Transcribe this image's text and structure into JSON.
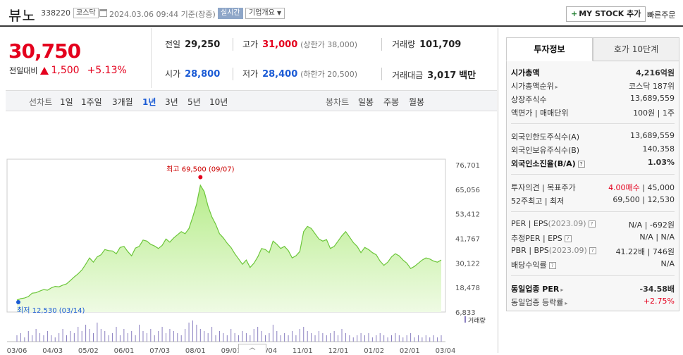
{
  "header": {
    "name": "뷰노",
    "code": "338220",
    "market": "코스닥",
    "datetime": "2024.03.06 09:44 기준(장중)",
    "realtime": "실시간",
    "company_info": "기업개요",
    "mystock": "MY STOCK 추가",
    "quick_order": "빠른주문"
  },
  "price": {
    "current": "30,750",
    "change_label": "전일대비",
    "change_amount": "1,500",
    "change_pct": "+5.13%"
  },
  "stats": {
    "prev_label": "전일",
    "prev": "29,250",
    "high_label": "고가",
    "high": "31,000",
    "upper_limit": "(상한가 38,000)",
    "volume_label": "거래량",
    "volume": "101,709",
    "open_label": "시가",
    "open": "28,800",
    "low_label": "저가",
    "low": "28,400",
    "lower_limit": "(하한가 20,500)",
    "amount_label": "거래대금",
    "amount": "3,017",
    "amount_unit": "백만"
  },
  "period_bar": {
    "line_label": "선차트",
    "line_tabs": [
      "1일",
      "1주일",
      "3개월",
      "1년",
      "3년",
      "5년",
      "10년"
    ],
    "active": "1년",
    "candle_label": "봉차트",
    "candle_tabs": [
      "일봉",
      "주봉",
      "월봉"
    ]
  },
  "chart_data": {
    "type": "area",
    "y_ticks": [
      "76,701",
      "65,056",
      "53,412",
      "41,767",
      "30,122",
      "18,478",
      "6,833"
    ],
    "x_ticks": [
      "03/06",
      "04/03",
      "05/02",
      "06/01",
      "07/03",
      "08/01",
      "09/01",
      "10/04",
      "11/01",
      "12/01",
      "01/02",
      "02/01",
      "03/04"
    ],
    "max_label": "최고 69,500 (09/07)",
    "min_label": "최저 12,530 (03/14)",
    "volume_label": "거래량",
    "ylim": [
      6833,
      76701
    ],
    "values": [
      12530,
      13200,
      13500,
      14200,
      15800,
      16000,
      16800,
      17500,
      17200,
      18300,
      19000,
      18800,
      19600,
      20200,
      21800,
      23500,
      25000,
      26800,
      29500,
      32500,
      30500,
      33000,
      34000,
      36500,
      36000,
      35800,
      34500,
      37500,
      38000,
      35500,
      33500,
      37200,
      38000,
      41000,
      40500,
      39000,
      38200,
      37000,
      38500,
      41500,
      40000,
      42000,
      43500,
      45000,
      44000,
      46500,
      52000,
      58000,
      67000,
      64000,
      57000,
      52000,
      48500,
      44000,
      42000,
      39500,
      37500,
      34500,
      32000,
      29500,
      31500,
      28000,
      30000,
      33000,
      37000,
      36500,
      35000,
      40500,
      39000,
      37000,
      38000,
      36000,
      32500,
      33500,
      35500,
      45000,
      47500,
      46500,
      44000,
      41500,
      40500,
      41200,
      37000,
      38000,
      40500,
      43000,
      45000,
      42500,
      39800,
      38000,
      35000,
      37500,
      36500,
      35000,
      34000,
      31000,
      29000,
      30500,
      33000,
      34500,
      33500,
      31500,
      30000,
      27500,
      28500,
      30000,
      31500,
      32500,
      32000,
      31000,
      30500,
      31500
    ],
    "volumes": [
      0.3,
      0.4,
      0.2,
      0.5,
      0.3,
      0.6,
      0.4,
      0.3,
      0.5,
      0.3,
      0.2,
      0.4,
      0.6,
      0.3,
      0.5,
      0.4,
      0.7,
      0.5,
      0.8,
      0.6,
      0.4,
      0.9,
      0.6,
      0.5,
      0.3,
      0.4,
      0.7,
      0.3,
      0.6,
      0.4,
      0.5,
      0.3,
      0.8,
      0.5,
      0.4,
      0.6,
      0.3,
      0.5,
      0.7,
      0.4,
      0.6,
      0.5,
      0.4,
      0.3,
      0.6,
      0.9,
      1.0,
      0.8,
      0.6,
      0.5,
      0.4,
      0.7,
      0.3,
      0.5,
      0.4,
      0.3,
      0.6,
      0.4,
      0.3,
      0.5,
      0.4,
      0.3,
      0.6,
      0.7,
      0.5,
      0.3,
      0.4,
      0.8,
      0.5,
      0.3,
      0.4,
      0.3,
      0.5,
      0.3,
      0.6,
      0.7,
      0.5,
      0.4,
      0.3,
      0.5,
      0.4,
      0.3,
      0.4,
      0.5,
      0.3,
      0.6,
      0.4,
      0.3,
      0.2,
      0.3,
      0.4,
      0.3,
      0.4,
      0.2,
      0.3,
      0.4,
      0.3,
      0.2,
      0.3,
      0.4,
      0.3,
      0.2,
      0.3,
      0.4,
      0.2,
      0.3,
      0.2,
      0.3,
      0.2,
      0.3,
      0.2,
      0.3
    ]
  },
  "invest": {
    "tab_info": "투자정보",
    "tab_orderbook": "호가 10단계",
    "rows": {
      "mcap_k": "시가총액",
      "mcap_v": "4,216억원",
      "rank_k": "시가총액순위",
      "rank_v": "코스닥 187위",
      "shares_k": "상장주식수",
      "shares_v": "13,689,559",
      "par_k": "액면가 | 매매단위",
      "par_v": "100원 | 1주",
      "forlim_k": "외국인한도주식수(A)",
      "forlim_v": "13,689,559",
      "forhold_k": "외국인보유주식수(B)",
      "forhold_v": "140,358",
      "forratio_k": "외국인소진율(B/A)",
      "forratio_v": "1.03%",
      "opinion_k": "투자의견 | 목표주가",
      "opinion_rating": "4.00매수",
      "opinion_target": "45,000",
      "range_k": "52주최고 | 최저",
      "range_v": "69,500 | 12,530",
      "per_k": "PER | EPS",
      "per_date": "(2023.09)",
      "per_v": "N/A | -692원",
      "eper_k": "추정PER | EPS",
      "eper_v": "N/A | N/A",
      "pbr_k": "PBR | BPS",
      "pbr_date": "(2023.09)",
      "pbr_v": "41.22배 | 746원",
      "div_k": "배당수익률",
      "div_v": "N/A",
      "sector_per_k": "동일업종 PER",
      "sector_per_v": "-34.58배",
      "sector_chg_k": "동일업종 등락률",
      "sector_chg_v": "+2.75%"
    }
  },
  "colors": {
    "up": "#e4001d",
    "down": "#1b5bd5",
    "area_fill": "#c8f0a0",
    "area_line": "#6cc63a",
    "volume_bar": "#8a7fc0"
  }
}
